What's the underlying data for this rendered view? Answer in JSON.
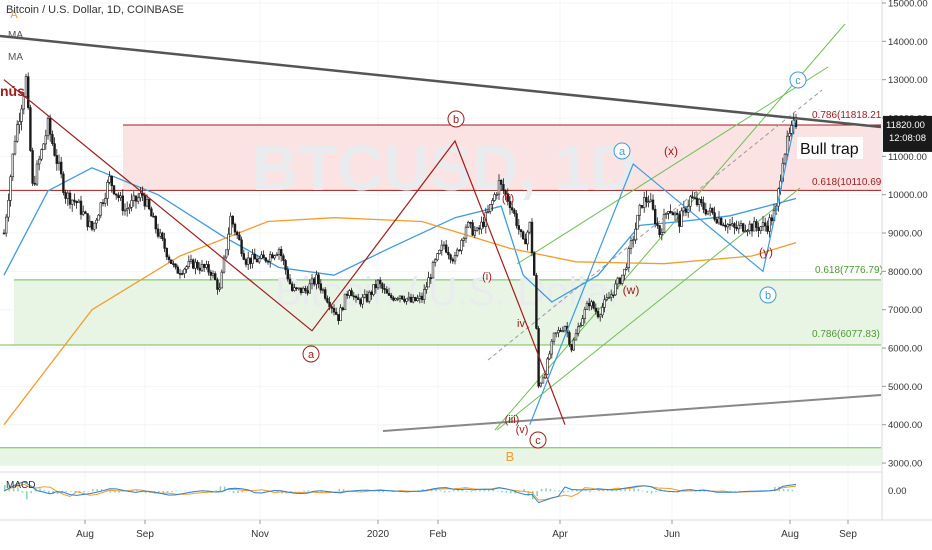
{
  "header": {
    "title": "Bitcoin / U.S. Dollar, 1D, COINBASE",
    "ma1": "MA",
    "ma2": "MA",
    "cut_label": "nús",
    "watermark_symbol": "BTCUSD, 1D",
    "watermark_name": "Bitcoin / U.S. Dollar"
  },
  "colors": {
    "candle": "#1a1a1a",
    "blue_ma": "#3d9be0",
    "orange_ma": "#f39c2c",
    "green_line": "#6fbf52",
    "red_line": "#a01c1c",
    "trend_gray": "#555555",
    "fib_zone_red": "#fbe3e3",
    "fib_zone_green": "#e8f5e4",
    "macd_line": "#2d7fd1",
    "signal_line": "#f39c2c",
    "hist": "#8fd1c3",
    "price_tag_bg": "#1a1a1a"
  },
  "chart_data": {
    "type": "line",
    "subtype": "candlestick",
    "title": "Bitcoin / U.S. Dollar, 1D, COINBASE",
    "x_tick_labels": [
      "Aug",
      "Sep",
      "Nov",
      "2020",
      "Feb",
      "Apr",
      "Jun",
      "Aug",
      "Sep"
    ],
    "y_tick_labels": [
      "15000.00",
      "14000.00",
      "13000.00",
      "12000.00",
      "11000.00",
      "10000.00",
      "9000.00",
      "8000.00",
      "7000.00",
      "6000.00",
      "5000.00",
      "4000.00",
      "3000.00"
    ],
    "y_ticks": [
      15000,
      14000,
      13000,
      12000,
      11000,
      10000,
      9000,
      8000,
      7000,
      6000,
      5000,
      4000,
      3000
    ],
    "ylim": [
      2800,
      15250
    ],
    "current_price": {
      "label": "12:08:08",
      "value": 11820
    },
    "price_anchors": [
      [
        0,
        9000
      ],
      [
        5,
        11500
      ],
      [
        10,
        13000
      ],
      [
        13,
        10200
      ],
      [
        20,
        11800
      ],
      [
        28,
        10000
      ],
      [
        33,
        9800
      ],
      [
        40,
        9100
      ],
      [
        48,
        10400
      ],
      [
        55,
        9600
      ],
      [
        63,
        10000
      ],
      [
        70,
        9000
      ],
      [
        78,
        8000
      ],
      [
        86,
        8200
      ],
      [
        94,
        8000
      ],
      [
        98,
        7500
      ],
      [
        103,
        9400
      ],
      [
        110,
        8300
      ],
      [
        118,
        8300
      ],
      [
        125,
        8600
      ],
      [
        131,
        7500
      ],
      [
        137,
        7500
      ],
      [
        142,
        7800
      ],
      [
        147,
        7300
      ],
      [
        152,
        6800
      ],
      [
        157,
        7600
      ],
      [
        160,
        7200
      ],
      [
        165,
        7300
      ],
      [
        170,
        7700
      ],
      [
        175,
        7300
      ],
      [
        180,
        7400
      ],
      [
        185,
        7200
      ],
      [
        190,
        7300
      ],
      [
        195,
        8100
      ],
      [
        200,
        8700
      ],
      [
        205,
        8300
      ],
      [
        210,
        9200
      ],
      [
        215,
        9000
      ],
      [
        220,
        9500
      ],
      [
        225,
        10300
      ],
      [
        230,
        9800
      ],
      [
        233,
        9300
      ],
      [
        236,
        8700
      ],
      [
        239,
        9200
      ],
      [
        241,
        7900
      ],
      [
        243,
        5000
      ],
      [
        246,
        5400
      ],
      [
        250,
        6300
      ],
      [
        255,
        6600
      ],
      [
        258,
        6000
      ],
      [
        262,
        6700
      ],
      [
        266,
        7200
      ],
      [
        270,
        6900
      ],
      [
        276,
        7400
      ],
      [
        282,
        8000
      ],
      [
        286,
        8900
      ],
      [
        290,
        9800
      ],
      [
        293,
        9900
      ],
      [
        298,
        9000
      ],
      [
        302,
        9700
      ],
      [
        307,
        9300
      ],
      [
        312,
        9900
      ],
      [
        317,
        9700
      ],
      [
        322,
        9500
      ],
      [
        327,
        9300
      ],
      [
        332,
        9100
      ],
      [
        337,
        9200
      ],
      [
        342,
        9150
      ],
      [
        347,
        9200
      ],
      [
        351,
        9600
      ],
      [
        354,
        11000
      ],
      [
        357,
        11500
      ],
      [
        360,
        11900
      ]
    ],
    "moving_averages": [
      {
        "name": "MA",
        "color": "#3d9be0",
        "points": [
          [
            0,
            7900
          ],
          [
            20,
            10100
          ],
          [
            40,
            10700
          ],
          [
            70,
            10000
          ],
          [
            100,
            8900
          ],
          [
            125,
            8100
          ],
          [
            150,
            7900
          ],
          [
            175,
            8600
          ],
          [
            205,
            9400
          ],
          [
            226,
            9700
          ],
          [
            236,
            7900
          ],
          [
            249,
            7200
          ],
          [
            270,
            7900
          ],
          [
            289,
            9200
          ],
          [
            308,
            9300
          ],
          [
            330,
            9450
          ],
          [
            360,
            9900
          ]
        ]
      },
      {
        "name": "MA",
        "color": "#f39c2c",
        "points": [
          [
            0,
            4000
          ],
          [
            40,
            7000
          ],
          [
            80,
            8400
          ],
          [
            120,
            9300
          ],
          [
            150,
            9400
          ],
          [
            190,
            9300
          ],
          [
            230,
            8600
          ],
          [
            260,
            8250
          ],
          [
            300,
            8200
          ],
          [
            340,
            8400
          ],
          [
            360,
            8750
          ]
        ]
      }
    ],
    "fib_levels": [
      {
        "ratio": "0.786",
        "value": 11818.21,
        "label": "0.786(11818.21)"
      },
      {
        "ratio": "0.618",
        "value": 10110.69,
        "label": "0.618(10110.69)"
      },
      {
        "ratio": "0.618",
        "value": 7776.79,
        "label": "0.618(7776.79)"
      },
      {
        "ratio": "0.786",
        "value": 6077.83,
        "label": "0.786(6077.83)"
      }
    ],
    "extra_levels": [
      3400
    ],
    "annotations": {
      "bull_trap": "Bull trap",
      "labels": [
        "a",
        "b",
        "c",
        "(ii)",
        "(i)",
        "(iii)",
        "iv",
        "(v)",
        "(x)",
        "(w)",
        "(y)",
        "a",
        "b",
        "c",
        "A",
        "B"
      ]
    },
    "waves_points": {
      "red": [
        [
          0,
          13000
        ],
        [
          140,
          6450
        ],
        [
          205,
          11400
        ],
        [
          239,
          6400
        ],
        [
          255,
          4000
        ]
      ],
      "blue": [
        [
          239,
          4000
        ],
        [
          286,
          10800
        ],
        [
          345,
          8000
        ],
        [
          360,
          12000
        ]
      ]
    },
    "macd": {
      "label": "MACD",
      "y_tick_labels": [
        "0.00"
      ],
      "y_ticks": [
        0
      ]
    }
  }
}
